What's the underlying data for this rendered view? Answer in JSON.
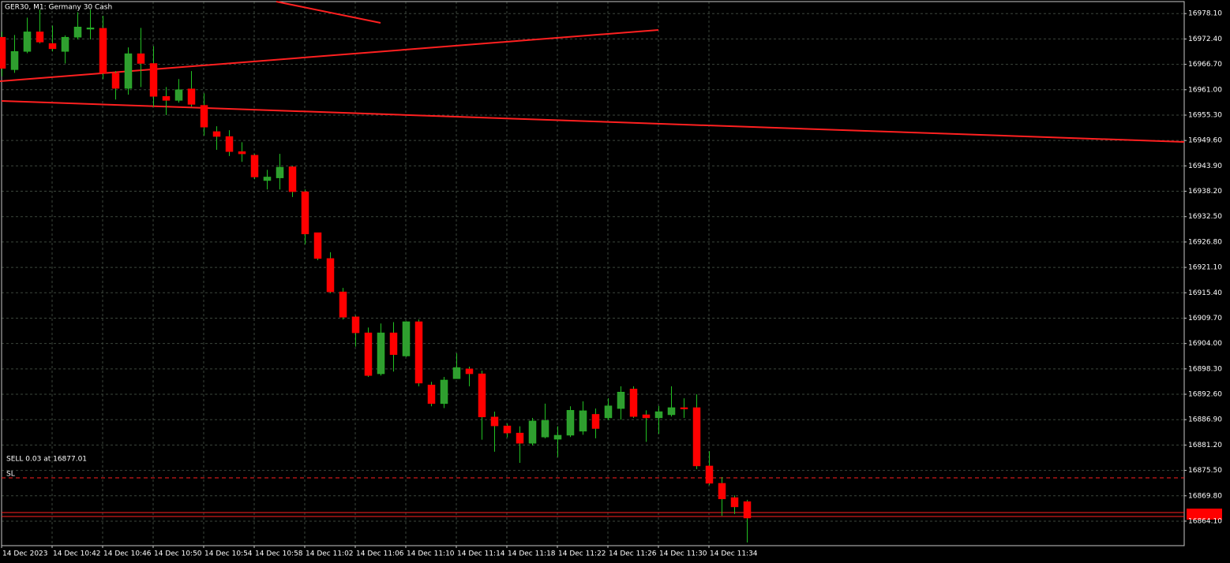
{
  "chart_data": {
    "type": "candlestick",
    "title": "GER30, M1:  Germany 30 Cash",
    "annotations": [
      "SELL 0.03 at 16877.01",
      "SL"
    ],
    "categories": [
      "14 Dec 2023",
      null,
      null,
      null,
      "14 Dec 10:42",
      null,
      null,
      null,
      "14 Dec 10:46",
      null,
      null,
      null,
      "14 Dec 10:50",
      null,
      null,
      null,
      "14 Dec 10:54",
      null,
      null,
      null,
      "14 Dec 10:58",
      null,
      null,
      null,
      "14 Dec 11:02",
      null,
      null,
      null,
      "14 Dec 11:06",
      null,
      null,
      null,
      "14 Dec 11:10",
      null,
      null,
      null,
      "14 Dec 11:14",
      null,
      null,
      null,
      "14 Dec 11:18",
      null,
      null,
      null,
      "14 Dec 11:22",
      null,
      null,
      null,
      "14 Dec 11:26",
      null,
      null,
      null,
      "14 Dec 11:30",
      null,
      null,
      null,
      "14 Dec 11:34",
      null,
      null,
      null
    ],
    "open": [
      16972.8,
      16965.5,
      16969.6,
      16974.0,
      16971.4,
      16969.6,
      16972.8,
      16974.6,
      16974.8,
      16964.7,
      16961.3,
      16969.1,
      16966.9,
      16959.5,
      16958.6,
      16961.2,
      16957.5,
      16951.6,
      16950.5,
      16947.1,
      16946.3,
      16940.6,
      16941.2,
      16943.7,
      16938.1,
      16928.9,
      16923.1,
      16915.6,
      16910.0,
      16906.4,
      16897.2,
      16906.4,
      16901.2,
      16908.9,
      16894.7,
      16890.5,
      16896.1,
      16898.3,
      16897.2,
      16887.5,
      16885.5,
      16883.9,
      16881.6,
      16883.0,
      16882.5,
      16883.4,
      16884.3,
      16888.1,
      16887.3,
      16889.4,
      16893.8,
      16888.0,
      16887.3,
      16888.0,
      16889.6,
      16889.6,
      16876.5,
      16872.6,
      16869.4,
      16868.5
    ],
    "high": [
      16974.0,
      16973.3,
      16977.2,
      16979.0,
      16975.4,
      16973.2,
      16978.4,
      16979.0,
      16977.6,
      16965.2,
      16970.5,
      16974.9,
      16970.8,
      16961.6,
      16963.4,
      16965.2,
      16960.2,
      16952.8,
      16951.9,
      16949.2,
      16946.6,
      16943.0,
      16946.6,
      16943.9,
      16938.6,
      16928.9,
      16924.5,
      16916.5,
      16910.3,
      16907.6,
      16908.5,
      16908.8,
      16909.0,
      16909.4,
      16895.4,
      16896.5,
      16901.8,
      16898.8,
      16897.9,
      16888.7,
      16886.0,
      16885.4,
      16887.3,
      16890.5,
      16885.4,
      16889.9,
      16891.0,
      16889.4,
      16891.7,
      16894.4,
      16894.4,
      16889.0,
      16890.0,
      16894.4,
      16891.7,
      16892.6,
      16879.8,
      16874.0,
      16869.9,
      16868.9
    ],
    "low": [
      16964.0,
      16964.8,
      16969.2,
      16971.4,
      16969.6,
      16966.9,
      16972.3,
      16972.3,
      16963.4,
      16958.8,
      16959.9,
      16961.6,
      16957.2,
      16955.3,
      16958.1,
      16957.2,
      16950.7,
      16947.5,
      16946.1,
      16944.8,
      16940.9,
      16938.6,
      16938.6,
      16936.9,
      16926.3,
      16922.7,
      16915.3,
      16909.4,
      16903.3,
      16896.5,
      16896.8,
      16897.7,
      16901.0,
      16894.4,
      16889.9,
      16889.5,
      16896.1,
      16894.4,
      16882.4,
      16879.7,
      16882.9,
      16877.2,
      16881.1,
      16882.7,
      16878.5,
      16883.0,
      16883.5,
      16882.7,
      16886.8,
      16886.9,
      16887.3,
      16881.9,
      16883.7,
      16887.6,
      16887.3,
      16875.8,
      16872.2,
      16865.3,
      16865.7,
      16859.3
    ],
    "close": [
      16965.8,
      16969.6,
      16974.0,
      16971.7,
      16970.2,
      16972.8,
      16975.1,
      16974.9,
      16964.7,
      16961.3,
      16969.1,
      16966.9,
      16959.5,
      16958.6,
      16961.0,
      16957.7,
      16952.6,
      16950.5,
      16947.1,
      16946.6,
      16941.4,
      16941.4,
      16943.6,
      16938.1,
      16928.6,
      16923.1,
      16915.6,
      16909.9,
      16906.4,
      16896.8,
      16906.4,
      16901.5,
      16908.9,
      16895.1,
      16890.5,
      16895.8,
      16898.6,
      16897.2,
      16887.5,
      16885.5,
      16883.9,
      16881.6,
      16886.6,
      16886.7,
      16883.4,
      16889.0,
      16888.9,
      16884.9,
      16890.0,
      16893.1,
      16887.6,
      16887.3,
      16888.7,
      16889.6,
      16889.3,
      16876.5,
      16872.6,
      16869.1,
      16867.3,
      16864.8
    ],
    "ylim": [
      16858.6,
      16980.8
    ],
    "yticks": [
      {
        "value": 16978.1,
        "label": "16978.10"
      },
      {
        "value": 16972.4,
        "label": "16972.40"
      },
      {
        "value": 16966.7,
        "label": "16966.70"
      },
      {
        "value": 16961.0,
        "label": "16961.00"
      },
      {
        "value": 16955.3,
        "label": "16955.30"
      },
      {
        "value": 16949.6,
        "label": "16949.60"
      },
      {
        "value": 16943.9,
        "label": "16943.90"
      },
      {
        "value": 16938.2,
        "label": "16938.20"
      },
      {
        "value": 16932.5,
        "label": "16932.50"
      },
      {
        "value": 16926.8,
        "label": "16926.80"
      },
      {
        "value": 16921.1,
        "label": "16921.10"
      },
      {
        "value": 16915.4,
        "label": "16915.40"
      },
      {
        "value": 16909.7,
        "label": "16909.70"
      },
      {
        "value": 16904.0,
        "label": "16904.00"
      },
      {
        "value": 16898.3,
        "label": "16898.30"
      },
      {
        "value": 16892.6,
        "label": "16892.60"
      },
      {
        "value": 16886.9,
        "label": "16886.90"
      },
      {
        "value": 16881.2,
        "label": "16881.20"
      },
      {
        "value": 16875.5,
        "label": "16875.50"
      },
      {
        "value": 16869.8,
        "label": "16869.80"
      },
      {
        "value": 16864.1,
        "label": "16864.10"
      }
    ],
    "grid": true,
    "up_color": "#2f9e2f",
    "down_color": "#ff0000",
    "wick_color": "#22c022"
  }
}
